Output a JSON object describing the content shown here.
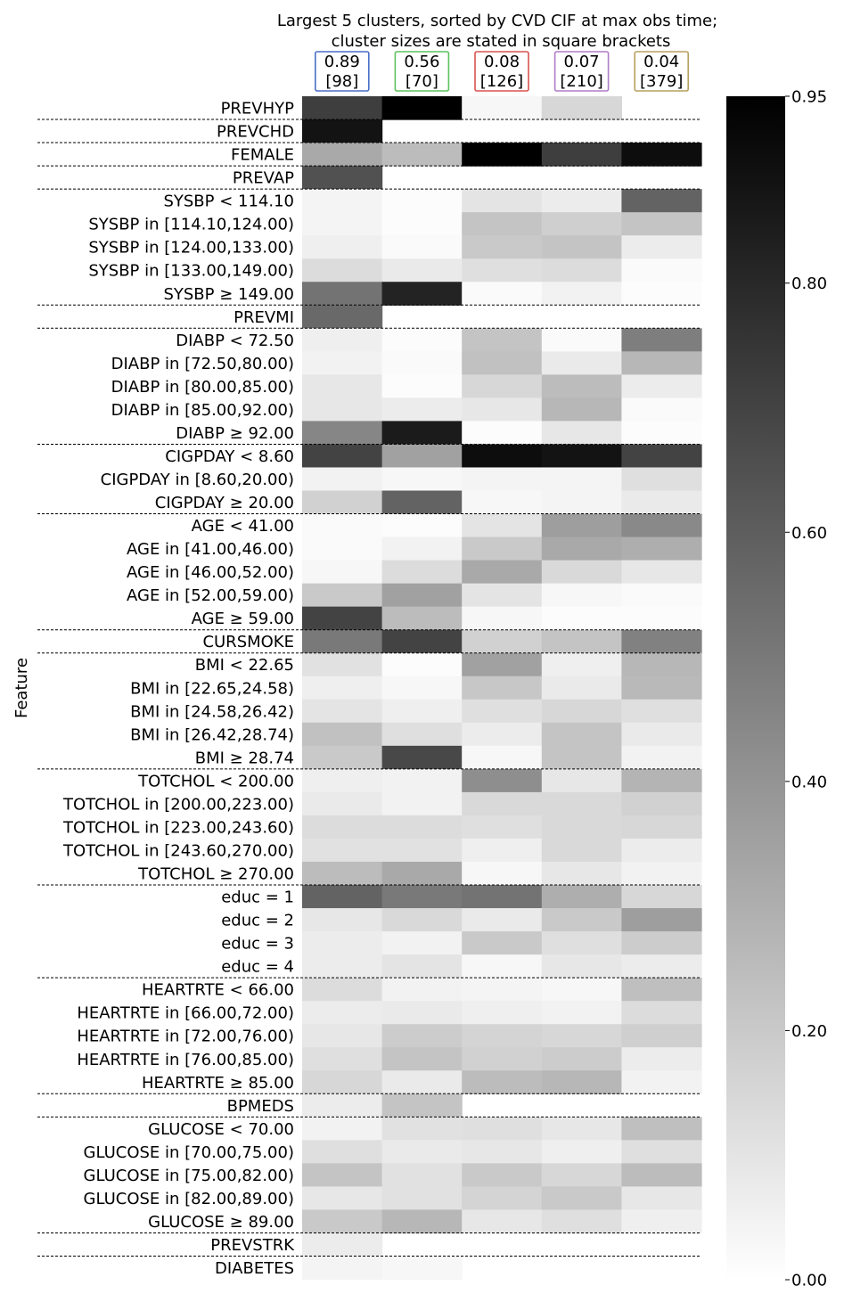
{
  "chart_data": {
    "type": "heatmap",
    "title": [
      "Largest 5 clusters, sorted by CVD CIF at max obs time;",
      "cluster sizes are stated in square brackets"
    ],
    "ylabel": "Feature",
    "columns": [
      {
        "cif": "0.89",
        "size": "[98]",
        "color": "#4a6fc7"
      },
      {
        "cif": "0.56",
        "size": "[70]",
        "color": "#5cc25c"
      },
      {
        "cif": "0.08",
        "size": "[126]",
        "color": "#d9534f"
      },
      {
        "cif": "0.07",
        "size": "[210]",
        "color": "#b07cc6"
      },
      {
        "cif": "0.04",
        "size": "[379]",
        "color": "#b8a060"
      }
    ],
    "colorbar": {
      "min": 0,
      "max": 0.95,
      "ticks": [
        "0.00",
        "0.20",
        "0.40",
        "0.60",
        "0.80",
        "0.95"
      ]
    },
    "groups": [
      1,
      1,
      1,
      1,
      5,
      1,
      5,
      3,
      5,
      1,
      5,
      5,
      4,
      5,
      1,
      5,
      1,
      1
    ],
    "rows": [
      {
        "label": "PREVHYP",
        "values": [
          0.72,
          0.95,
          0.03,
          0.15,
          null
        ]
      },
      {
        "label": "PREVCHD",
        "values": [
          0.88,
          null,
          null,
          null,
          null
        ]
      },
      {
        "label": "FEMALE",
        "values": [
          0.32,
          0.25,
          0.95,
          0.72,
          0.9
        ]
      },
      {
        "label": "PREVAP",
        "values": [
          0.65,
          null,
          null,
          null,
          null
        ]
      },
      {
        "label": "SYSBP < 114.10",
        "values": [
          0.04,
          0.01,
          0.1,
          0.07,
          0.58
        ]
      },
      {
        "label": "SYSBP in [114.10,124.00)",
        "values": [
          0.04,
          0.01,
          0.22,
          0.18,
          0.22
        ]
      },
      {
        "label": "SYSBP in [124.00,133.00)",
        "values": [
          0.06,
          0.02,
          0.2,
          0.22,
          0.07
        ]
      },
      {
        "label": "SYSBP in [133.00,149.00)",
        "values": [
          0.13,
          0.08,
          0.12,
          0.13,
          0.02
        ]
      },
      {
        "label": "SYSBP ≥ 149.00",
        "values": [
          0.52,
          0.82,
          0.02,
          0.05,
          0.01
        ]
      },
      {
        "label": "PREVMI",
        "values": [
          0.56,
          null,
          null,
          null,
          null
        ]
      },
      {
        "label": "DIABP < 72.50",
        "values": [
          0.06,
          0.01,
          0.22,
          0.02,
          0.48
        ]
      },
      {
        "label": "DIABP in [72.50,80.00)",
        "values": [
          0.05,
          0.02,
          0.23,
          0.08,
          0.27
        ]
      },
      {
        "label": "DIABP in [80.00,85.00)",
        "values": [
          0.09,
          0.01,
          0.15,
          0.25,
          0.07
        ]
      },
      {
        "label": "DIABP in [85.00,92.00)",
        "values": [
          0.09,
          0.07,
          0.09,
          0.27,
          0.02
        ]
      },
      {
        "label": "DIABP ≥ 92.00",
        "values": [
          0.45,
          0.85,
          0.01,
          0.09,
          0.01
        ]
      },
      {
        "label": "CIGPDAY < 8.60",
        "values": [
          0.7,
          0.35,
          0.9,
          0.88,
          0.7
        ]
      },
      {
        "label": "CIGPDAY in [8.60,20.00)",
        "values": [
          0.05,
          0.03,
          0.04,
          0.04,
          0.12
        ]
      },
      {
        "label": "CIGPDAY ≥ 20.00",
        "values": [
          0.17,
          0.58,
          0.03,
          0.04,
          0.08
        ]
      },
      {
        "label": "AGE < 41.00",
        "values": [
          0.02,
          0.01,
          0.1,
          0.36,
          0.44
        ]
      },
      {
        "label": "AGE in [41.00,46.00)",
        "values": [
          0.02,
          0.05,
          0.2,
          0.32,
          0.3
        ]
      },
      {
        "label": "AGE in [46.00,52.00)",
        "values": [
          0.03,
          0.13,
          0.32,
          0.14,
          0.09
        ]
      },
      {
        "label": "AGE in [52.00,59.00)",
        "values": [
          0.2,
          0.35,
          0.1,
          0.03,
          0.02
        ]
      },
      {
        "label": "AGE ≥ 59.00",
        "values": [
          0.7,
          0.25,
          0.03,
          0.01,
          0.01
        ]
      },
      {
        "label": "CURSMOKE",
        "values": [
          0.5,
          0.7,
          0.17,
          0.22,
          0.47
        ]
      },
      {
        "label": "BMI < 22.65",
        "values": [
          0.11,
          0.01,
          0.35,
          0.06,
          0.27
        ]
      },
      {
        "label": "BMI in [22.65,24.58)",
        "values": [
          0.06,
          0.03,
          0.21,
          0.08,
          0.26
        ]
      },
      {
        "label": "BMI in [24.58,26.42)",
        "values": [
          0.1,
          0.06,
          0.12,
          0.15,
          0.12
        ]
      },
      {
        "label": "BMI in [26.42,28.74)",
        "values": [
          0.23,
          0.12,
          0.07,
          0.22,
          0.08
        ]
      },
      {
        "label": "BMI ≥ 28.74",
        "values": [
          0.2,
          0.68,
          0.03,
          0.22,
          0.05
        ]
      },
      {
        "label": "TOTCHOL < 200.00",
        "values": [
          0.06,
          0.05,
          0.42,
          0.09,
          0.28
        ]
      },
      {
        "label": "TOTCHOL in [200.00,223.00)",
        "values": [
          0.08,
          0.05,
          0.14,
          0.14,
          0.17
        ]
      },
      {
        "label": "TOTCHOL in [223.00,243.60)",
        "values": [
          0.13,
          0.13,
          0.12,
          0.14,
          0.15
        ]
      },
      {
        "label": "TOTCHOL in [243.60,270.00)",
        "values": [
          0.11,
          0.11,
          0.06,
          0.14,
          0.07
        ]
      },
      {
        "label": "TOTCHOL ≥ 270.00",
        "values": [
          0.25,
          0.32,
          0.03,
          0.09,
          0.05
        ]
      },
      {
        "label": "educ = 1",
        "values": [
          0.58,
          0.5,
          0.52,
          0.3,
          0.15
        ]
      },
      {
        "label": "educ = 2",
        "values": [
          0.09,
          0.14,
          0.08,
          0.2,
          0.36
        ]
      },
      {
        "label": "educ = 3",
        "values": [
          0.07,
          0.05,
          0.2,
          0.12,
          0.19
        ]
      },
      {
        "label": "educ = 4",
        "values": [
          0.07,
          0.1,
          0.03,
          0.09,
          0.07
        ]
      },
      {
        "label": "HEARTRTE < 66.00",
        "values": [
          0.13,
          0.05,
          0.04,
          0.03,
          0.24
        ]
      },
      {
        "label": "HEARTRTE in [66.00,72.00)",
        "values": [
          0.07,
          0.08,
          0.06,
          0.05,
          0.13
        ]
      },
      {
        "label": "HEARTRTE in [72.00,76.00)",
        "values": [
          0.09,
          0.19,
          0.16,
          0.15,
          0.18
        ]
      },
      {
        "label": "HEARTRTE in [76.00,85.00)",
        "values": [
          0.12,
          0.22,
          0.17,
          0.19,
          0.07
        ]
      },
      {
        "label": "HEARTRTE ≥ 85.00",
        "values": [
          0.15,
          0.08,
          0.25,
          0.27,
          0.05
        ]
      },
      {
        "label": "BPMEDS",
        "values": [
          0.07,
          0.22,
          null,
          null,
          null
        ]
      },
      {
        "label": "GLUCOSE < 70.00",
        "values": [
          0.05,
          0.11,
          0.12,
          0.09,
          0.24
        ]
      },
      {
        "label": "GLUCOSE in [70.00,75.00)",
        "values": [
          0.12,
          0.08,
          0.09,
          0.06,
          0.12
        ]
      },
      {
        "label": "GLUCOSE in [75.00,82.00)",
        "values": [
          0.22,
          0.11,
          0.2,
          0.15,
          0.25
        ]
      },
      {
        "label": "GLUCOSE in [82.00,89.00)",
        "values": [
          0.09,
          0.11,
          0.16,
          0.2,
          0.09
        ]
      },
      {
        "label": "GLUCOSE ≥ 89.00",
        "values": [
          0.2,
          0.27,
          0.09,
          0.12,
          0.06
        ]
      },
      {
        "label": "PREVSTRK",
        "values": [
          0.07,
          null,
          null,
          null,
          null
        ]
      },
      {
        "label": "DIABETES",
        "values": [
          0.04,
          0.03,
          null,
          null,
          null
        ]
      }
    ]
  }
}
